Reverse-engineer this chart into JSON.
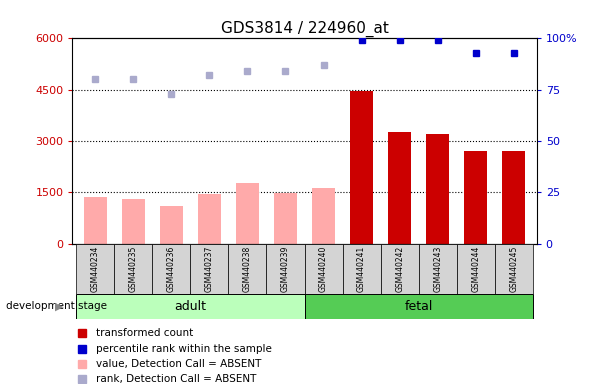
{
  "title": "GDS3814 / 224960_at",
  "samples": [
    "GSM440234",
    "GSM440235",
    "GSM440236",
    "GSM440237",
    "GSM440238",
    "GSM440239",
    "GSM440240",
    "GSM440241",
    "GSM440242",
    "GSM440243",
    "GSM440244",
    "GSM440245"
  ],
  "absent_mask": [
    true,
    true,
    true,
    true,
    true,
    true,
    true,
    false,
    false,
    false,
    false,
    false
  ],
  "bar_values": [
    1380,
    1300,
    1100,
    1450,
    1780,
    1480,
    1620,
    4450,
    3280,
    3200,
    2700,
    2700
  ],
  "rank_values": [
    80,
    80,
    73,
    82,
    84,
    84,
    87,
    99,
    99,
    99,
    93,
    93
  ],
  "left_ylim": [
    0,
    6000
  ],
  "right_ylim": [
    0,
    100
  ],
  "left_yticks": [
    0,
    1500,
    3000,
    4500,
    6000
  ],
  "right_yticks": [
    0,
    25,
    50,
    75,
    100
  ],
  "right_yticklabels": [
    "0",
    "25",
    "50",
    "75",
    "100%"
  ],
  "adult_count": 6,
  "fetal_count": 6,
  "adult_label": "adult",
  "fetal_label": "fetal",
  "stage_label": "development stage",
  "legend_items": [
    {
      "label": "transformed count",
      "color": "#cc0000"
    },
    {
      "label": "percentile rank within the sample",
      "color": "#0000cc"
    },
    {
      "label": "value, Detection Call = ABSENT",
      "color": "#ffaaaa"
    },
    {
      "label": "rank, Detection Call = ABSENT",
      "color": "#aaaacc"
    }
  ],
  "bar_color_present": "#cc0000",
  "bar_color_absent": "#ffaaaa",
  "rank_color_present": "#0000cc",
  "rank_color_absent": "#aaaacc",
  "adult_bg": "#bbffbb",
  "fetal_bg": "#55cc55",
  "tick_label_color_left": "#cc0000",
  "tick_label_color_right": "#0000cc",
  "bar_width": 0.6
}
